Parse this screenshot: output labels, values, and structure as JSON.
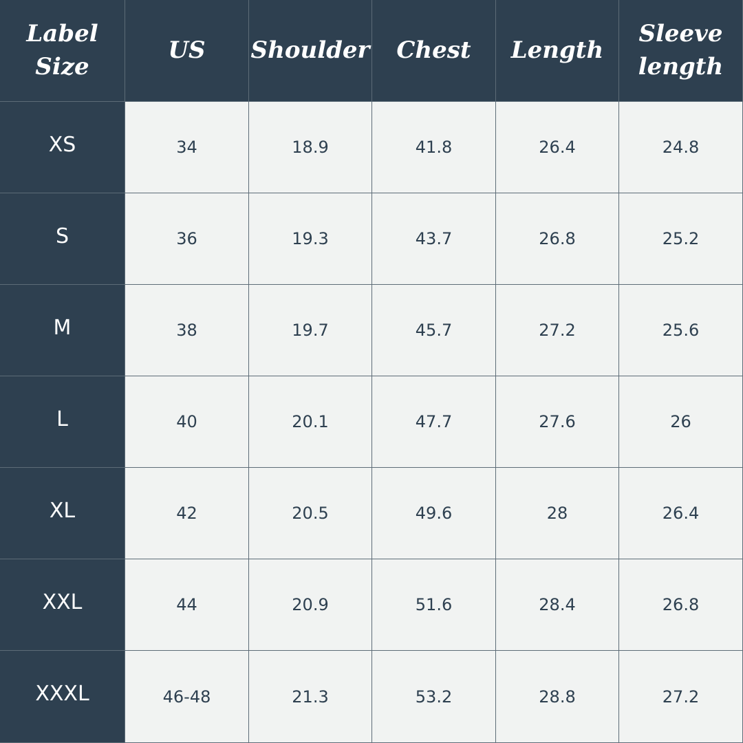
{
  "table": {
    "header": [
      "Label Size",
      "US",
      "Shoulder",
      "Chest",
      "Length",
      "Sleeve length"
    ],
    "rows": [
      [
        "XS",
        "34",
        "18.9",
        "41.8",
        "26.4",
        "24.8"
      ],
      [
        "S",
        "36",
        "19.3",
        "43.7",
        "26.8",
        "25.2"
      ],
      [
        "M",
        "38",
        "19.7",
        "45.7",
        "27.2",
        "25.6"
      ],
      [
        "L",
        "40",
        "20.1",
        "47.7",
        "27.6",
        "26"
      ],
      [
        "XL",
        "42",
        "20.5",
        "49.6",
        "28",
        "26.4"
      ],
      [
        "XXL",
        "44",
        "20.9",
        "51.6",
        "28.4",
        "26.8"
      ],
      [
        "XXXL",
        "46-48",
        "21.3",
        "53.2",
        "28.8",
        "27.2"
      ]
    ]
  }
}
